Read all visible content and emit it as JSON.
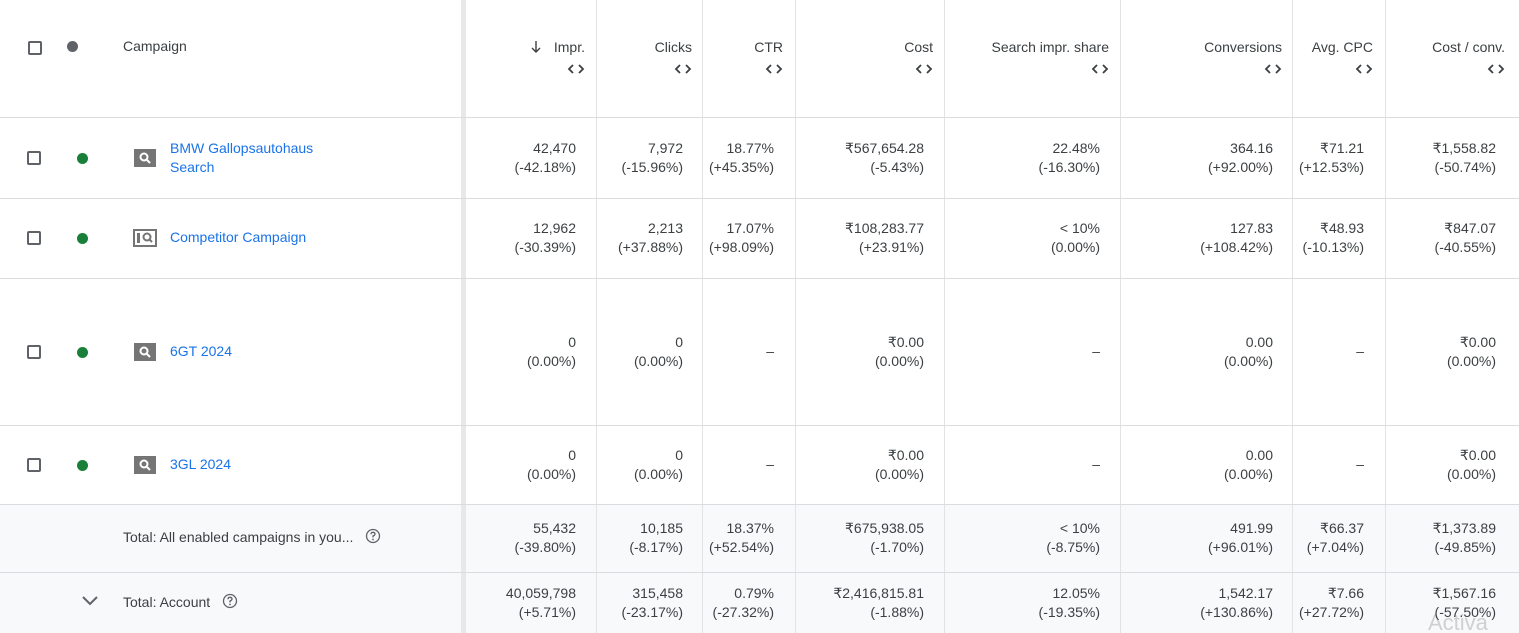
{
  "header": {
    "columns": [
      "Campaign",
      "Impr.",
      "Clicks",
      "CTR",
      "Cost",
      "Search impr. share",
      "Conversions",
      "Avg. CPC",
      "Cost / conv."
    ]
  },
  "rows": [
    {
      "name": "BMW Gallopsautohaus Search",
      "cells": [
        [
          "42,470",
          "(-42.18%)"
        ],
        [
          "7,972",
          "(-15.96%)"
        ],
        [
          "18.77%",
          "(+45.35%)"
        ],
        [
          "₹567,654.28",
          "(-5.43%)"
        ],
        [
          "22.48%",
          "(-16.30%)"
        ],
        [
          "364.16",
          "(+92.00%)"
        ],
        [
          "₹71.21",
          "(+12.53%)"
        ],
        [
          "₹1,558.82",
          "(-50.74%)"
        ]
      ]
    },
    {
      "name": "Competitor Campaign",
      "cells": [
        [
          "12,962",
          "(-30.39%)"
        ],
        [
          "2,213",
          "(+37.88%)"
        ],
        [
          "17.07%",
          "(+98.09%)"
        ],
        [
          "₹108,283.77",
          "(+23.91%)"
        ],
        [
          "< 10%",
          "(0.00%)"
        ],
        [
          "127.83",
          "(+108.42%)"
        ],
        [
          "₹48.93",
          "(-10.13%)"
        ],
        [
          "₹847.07",
          "(-40.55%)"
        ]
      ]
    },
    {
      "name": "6GT 2024",
      "cells": [
        [
          "0",
          "(0.00%)"
        ],
        [
          "0",
          "(0.00%)"
        ],
        [
          "–"
        ],
        [
          "₹0.00",
          "(0.00%)"
        ],
        [
          "–"
        ],
        [
          "0.00",
          "(0.00%)"
        ],
        [
          "–"
        ],
        [
          "₹0.00",
          "(0.00%)"
        ]
      ]
    },
    {
      "name": "3GL 2024",
      "cells": [
        [
          "0",
          "(0.00%)"
        ],
        [
          "0",
          "(0.00%)"
        ],
        [
          "–"
        ],
        [
          "₹0.00",
          "(0.00%)"
        ],
        [
          "–"
        ],
        [
          "0.00",
          "(0.00%)"
        ],
        [
          "–"
        ],
        [
          "₹0.00",
          "(0.00%)"
        ]
      ]
    }
  ],
  "totals": [
    {
      "label": "Total: All enabled campaigns in you...",
      "cells": [
        [
          "55,432",
          "(-39.80%)"
        ],
        [
          "10,185",
          "(-8.17%)"
        ],
        [
          "18.37%",
          "(+52.54%)"
        ],
        [
          "₹675,938.05",
          "(-1.70%)"
        ],
        [
          "< 10%",
          "(-8.75%)"
        ],
        [
          "491.99",
          "(+96.01%)"
        ],
        [
          "₹66.37",
          "(+7.04%)"
        ],
        [
          "₹1,373.89",
          "(-49.85%)"
        ]
      ]
    },
    {
      "label": "Total: Account",
      "cells": [
        [
          "40,059,798",
          "(+5.71%)"
        ],
        [
          "315,458",
          "(-23.17%)"
        ],
        [
          "0.79%",
          "(-27.32%)"
        ],
        [
          "₹2,416,815.81",
          "(-1.88%)"
        ],
        [
          "12.05%",
          "(-19.35%)"
        ],
        [
          "1,542.17",
          "(+130.86%)"
        ],
        [
          "₹7.66",
          "(+27.72%)"
        ],
        [
          "₹1,567.16",
          "(-57.50%)"
        ]
      ]
    }
  ],
  "watermark": "Activa"
}
